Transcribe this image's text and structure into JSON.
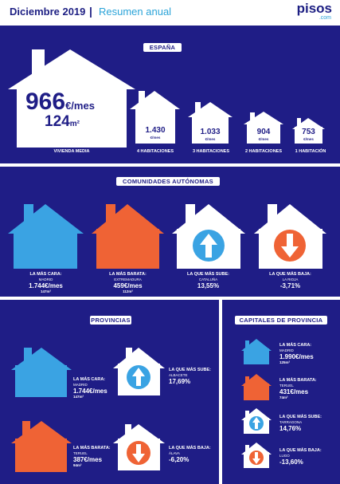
{
  "header": {
    "title": "Diciembre 2019",
    "separator": "|",
    "subtitle": "Resumen anual",
    "logo": "pisos",
    "logo_sub": ".com"
  },
  "colors": {
    "navy": "#1f1d86",
    "blue": "#3aa3e3",
    "orange": "#ef6335",
    "white": "#ffffff"
  },
  "espana": {
    "tag": "ESPAÑA",
    "media": {
      "price": "966",
      "price_unit": "€/mes",
      "size": "124",
      "size_unit": "m²",
      "label": "VIVIENDA MEDIA"
    },
    "rooms": [
      {
        "value": "1.430",
        "unit": "€/mes",
        "label": "4 HABITACIONES"
      },
      {
        "value": "1.033",
        "unit": "€/mes",
        "label": "3 HABITACIONES"
      },
      {
        "value": "904",
        "unit": "€/mes",
        "label": "2 HABITACIONES"
      },
      {
        "value": "753",
        "unit": "€/mes",
        "label": "1 HABITACIÓN"
      }
    ]
  },
  "ccaa": {
    "tag": "COMUNIDADES AUTÓNOMAS",
    "items": [
      {
        "title": "LA MÁS CARA:",
        "place": "MADRID",
        "value": "1.744€/mes",
        "size": "147m²",
        "icon": "blue-house-icon"
      },
      {
        "title": "LA MÁS BARATA:",
        "place": "EXTREMADURA",
        "value": "459€/mes",
        "size": "112m²",
        "icon": "orange-house-icon"
      },
      {
        "title": "LA QUE MÁS SUBE:",
        "place": "CATALUÑA",
        "value": "13,55%",
        "icon": "arrow-up-icon"
      },
      {
        "title": "LA QUE MÁS BAJA:",
        "place": "LA RIOJA",
        "value": "-3,71%",
        "icon": "arrow-down-icon"
      }
    ]
  },
  "provincias": {
    "tag": "PROVINCIAS",
    "items": [
      {
        "title": "LA MÁS CARA:",
        "place": "MADRID",
        "value": "1.744€/mes",
        "size": "147m²"
      },
      {
        "title": "LA QUE MÁS SUBE:",
        "place": "ALBACETE",
        "value": "17,69%"
      },
      {
        "title": "LA MÁS BARATA:",
        "place": "TERUEL",
        "value": "387€/mes",
        "size": "94m²"
      },
      {
        "title": "LA QUE MÁS BAJA:",
        "place": "ÁLAVA",
        "value": "-6,20%"
      }
    ]
  },
  "capitales": {
    "tag": "CAPITALES DE PROVINCIA",
    "items": [
      {
        "title": "LA MÁS CARA:",
        "place": "MADRID",
        "value": "1.990€/mes",
        "size": "125m²"
      },
      {
        "title": "LA MÁS BARATA:",
        "place": "TERUEL",
        "value": "431€/mes",
        "size": "74m²"
      },
      {
        "title": "LA QUE MÁS SUBE:",
        "place": "TARRAGONA",
        "value": "14,76%"
      },
      {
        "title": "LA QUE MÁS BAJA:",
        "place": "LUGO",
        "value": "-13,60%"
      }
    ]
  }
}
